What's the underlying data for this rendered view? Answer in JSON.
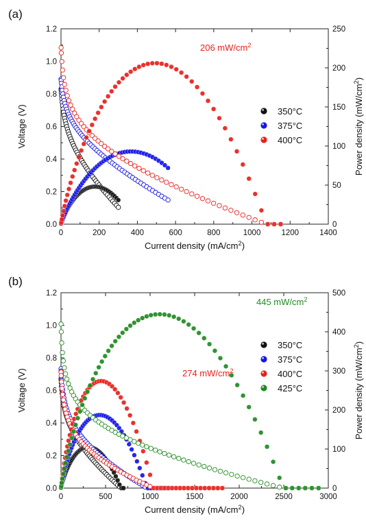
{
  "chart_data": [
    {
      "panel": "(a)",
      "type": "scatter",
      "xlabel": "Current density (mA/cm²)",
      "ylabel": "Voltage (V)",
      "y2label": "Power density (mW/cm²)",
      "xlim": [
        0,
        1400
      ],
      "ylim": [
        0,
        1.2
      ],
      "y2lim": [
        0,
        250
      ],
      "xticks": [
        "0",
        "200",
        "400",
        "600",
        "800",
        "1000",
        "1200",
        "1400"
      ],
      "yticks": [
        "0.0",
        "0.2",
        "0.4",
        "0.6",
        "0.8",
        "1.0",
        "1.2"
      ],
      "y2ticks": [
        "0",
        "50",
        "100",
        "150",
        "200",
        "250"
      ],
      "annotation": {
        "text": "206 mW/cm²",
        "color": "#e8201b"
      },
      "legend_position": "right",
      "series": [
        {
          "name": "350°C",
          "color": "#111111",
          "ocv": 0.84,
          "ohm": 0.00088,
          "act": 0.12,
          "act_c": 6,
          "x_max": 300,
          "pmax": 48,
          "n": 52
        },
        {
          "name": "375°C",
          "color": "#1515e6",
          "ocv": 0.9,
          "ohm": 0.00053,
          "act": 0.1,
          "act_c": 6,
          "x_max": 560,
          "pmax": 93,
          "n": 58
        },
        {
          "name": "400°C",
          "color": "#e8201b",
          "ocv": 1.1,
          "ohm": 0.00032,
          "act": 0.135,
          "act_c": 4,
          "x_max": 1150,
          "pmax": 206,
          "n": 58
        }
      ]
    },
    {
      "panel": "(b)",
      "type": "scatter",
      "xlabel": "Current density (mA/cm²)",
      "ylabel": "Voltage (V)",
      "y2label": "Power density (mW/cm²)",
      "xlim": [
        0,
        3000
      ],
      "ylim": [
        0,
        1.2
      ],
      "y2lim": [
        0,
        500
      ],
      "xticks": [
        "0",
        "500",
        "1000",
        "1500",
        "2000",
        "2500",
        "3000"
      ],
      "yticks": [
        "0.0",
        "0.2",
        "0.4",
        "0.6",
        "0.8",
        "1.0",
        "1.2"
      ],
      "y2ticks": [
        "0",
        "100",
        "200",
        "300",
        "400",
        "500"
      ],
      "annotations": [
        {
          "text": "445 mW/cm²",
          "color": "#1f8a1f"
        },
        {
          "text": "274 mW/cm²",
          "color": "#e8201b"
        }
      ],
      "legend_position": "right",
      "series": [
        {
          "name": "350°C",
          "color": "#111111",
          "ocv": 0.68,
          "ohm": 0.00035,
          "act": 0.1,
          "act_c": 8,
          "x_max": 700,
          "pmax": 105,
          "n": 55
        },
        {
          "name": "375°C",
          "color": "#1515e6",
          "ocv": 0.74,
          "ohm": 0.00022,
          "act": 0.11,
          "act_c": 8,
          "x_max": 1210,
          "pmax": 187,
          "n": 60
        },
        {
          "name": "400°C",
          "color": "#e8201b",
          "ocv": 0.72,
          "ohm": 0.00013,
          "act": 0.12,
          "act_c": 8,
          "x_max": 1810,
          "pmax": 274,
          "n": 62
        },
        {
          "name": "425°C",
          "color": "#1f8a1f",
          "ocv": 1.02,
          "ohm": 8.5e-05,
          "act": 0.13,
          "act_c": 5,
          "x_max": 2890,
          "pmax": 445,
          "n": 66
        }
      ]
    }
  ]
}
